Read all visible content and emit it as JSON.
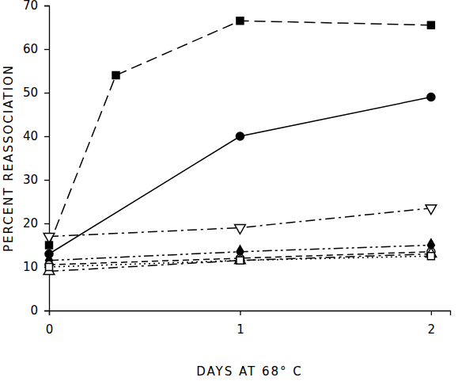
{
  "chart_data": {
    "type": "line",
    "x_label": "DAYS AT 68° C",
    "y_label": "PERCENT REASSOCIATION",
    "color": "#000000",
    "xlim": [
      0,
      2.1
    ],
    "xticks": [
      0,
      1,
      2
    ],
    "ylim": [
      0,
      70
    ],
    "yticks": [
      0,
      10,
      20,
      30,
      40,
      50,
      60,
      70
    ],
    "grid": false,
    "series": [
      {
        "x": [
          0,
          0.35,
          1,
          2
        ],
        "values": [
          15,
          54,
          66.5,
          65.5
        ],
        "marker": "square-filled",
        "line_style": "long-dash"
      },
      {
        "x": [
          0,
          1,
          2
        ],
        "values": [
          13,
          40,
          49
        ],
        "marker": "circle-filled",
        "line_style": "solid"
      },
      {
        "x": [
          0,
          1,
          2
        ],
        "values": [
          17,
          19,
          23.5
        ],
        "marker": "triangle-down-open",
        "line_style": "dash-dot"
      },
      {
        "x": [
          0,
          1,
          2
        ],
        "values": [
          11.5,
          13.5,
          15
        ],
        "marker": "diamond-filled",
        "line_style": "dash-dot-dot"
      },
      {
        "x": [
          0,
          1,
          2
        ],
        "values": [
          10.5,
          12,
          13.5
        ],
        "marker": "circle-open",
        "line_style": "dashed"
      },
      {
        "x": [
          0,
          1,
          2
        ],
        "values": [
          9,
          11.5,
          13
        ],
        "marker": "triangle-up-open",
        "line_style": "dash-dot"
      },
      {
        "x": [
          0,
          1,
          2
        ],
        "values": [
          10,
          11.5,
          12.5
        ],
        "marker": "square-open",
        "line_style": "dotted"
      }
    ]
  }
}
